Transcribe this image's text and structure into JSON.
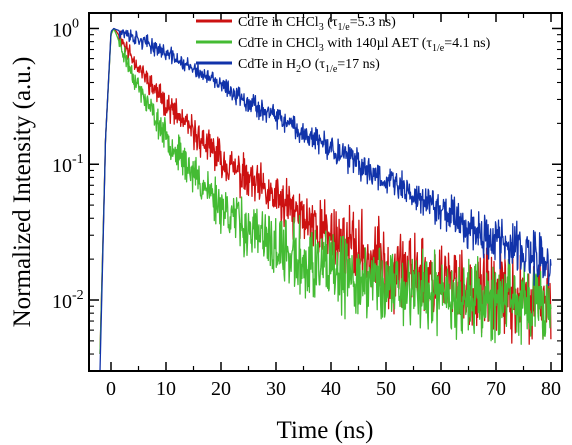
{
  "chart_data": {
    "type": "line",
    "title": "",
    "xlabel": "Time (ns)",
    "ylabel": "Normalized Intensity (a.u.)",
    "xlim": [
      -4,
      82
    ],
    "ylim": [
      0.003,
      1.3
    ],
    "yscale": "log",
    "x_ticks": [
      0,
      10,
      20,
      30,
      40,
      50,
      60,
      70,
      80
    ],
    "x_tick_labels": [
      "0",
      "10",
      "20",
      "30",
      "40",
      "50",
      "60",
      "70",
      "80"
    ],
    "y_ticks": [
      {
        "value": 1,
        "base": "10",
        "exp": "0"
      },
      {
        "value": 0.1,
        "base": "10",
        "exp": "-1"
      },
      {
        "value": 0.01,
        "base": "10",
        "exp": "-2"
      }
    ],
    "grid": false,
    "legend_position": "top-right",
    "series": [
      {
        "key": "chcl3",
        "color": "#cc1111",
        "legend": {
          "pre": "CdTe in CHCl",
          "sub1": "3",
          "mid": " (τ",
          "sub2": "1/e",
          "post": "=5.3 ns)"
        },
        "x": [
          -2,
          -1,
          0,
          0.5,
          1,
          2,
          3,
          5,
          7,
          10,
          15,
          20,
          25,
          30,
          35,
          40,
          45,
          50,
          55,
          60,
          65,
          70,
          75,
          80
        ],
        "y": [
          0.004,
          0.15,
          0.92,
          1.0,
          0.95,
          0.82,
          0.7,
          0.52,
          0.4,
          0.28,
          0.17,
          0.11,
          0.075,
          0.055,
          0.04,
          0.03,
          0.023,
          0.018,
          0.016,
          0.014,
          0.012,
          0.011,
          0.01,
          0.009
        ],
        "noise": 0.32,
        "seed": 11
      },
      {
        "key": "aet",
        "color": "#44bb33",
        "legend": {
          "pre": "CdTe in CHCl",
          "sub1": "3",
          "mid": " with 140µl AET (τ",
          "sub2": "1/e",
          "post": "=4.1 ns)"
        },
        "x": [
          -2,
          -1,
          0,
          0.5,
          1,
          2,
          3,
          5,
          7,
          10,
          15,
          20,
          25,
          30,
          35,
          40,
          45,
          50,
          55,
          60,
          65,
          70,
          75,
          80
        ],
        "y": [
          0.004,
          0.15,
          0.9,
          1.0,
          0.9,
          0.7,
          0.56,
          0.37,
          0.26,
          0.16,
          0.085,
          0.05,
          0.033,
          0.024,
          0.019,
          0.016,
          0.014,
          0.013,
          0.012,
          0.011,
          0.0105,
          0.01,
          0.0095,
          0.009
        ],
        "noise": 0.3,
        "seed": 23
      },
      {
        "key": "h2o",
        "color": "#1133aa",
        "legend": {
          "pre": "CdTe in H",
          "sub1": "2",
          "mid": "O (τ",
          "sub2": "1/e",
          "post": "=17 ns)"
        },
        "x": [
          -2,
          -1,
          0,
          0.5,
          1,
          2,
          3,
          5,
          7,
          10,
          15,
          20,
          25,
          30,
          35,
          40,
          45,
          50,
          55,
          60,
          65,
          70,
          75,
          80
        ],
        "y": [
          0.003,
          0.15,
          0.95,
          1.0,
          0.98,
          0.95,
          0.9,
          0.83,
          0.76,
          0.66,
          0.5,
          0.38,
          0.29,
          0.22,
          0.17,
          0.13,
          0.1,
          0.078,
          0.06,
          0.047,
          0.036,
          0.028,
          0.022,
          0.018
        ],
        "noise": 0.22,
        "seed": 37
      }
    ]
  }
}
